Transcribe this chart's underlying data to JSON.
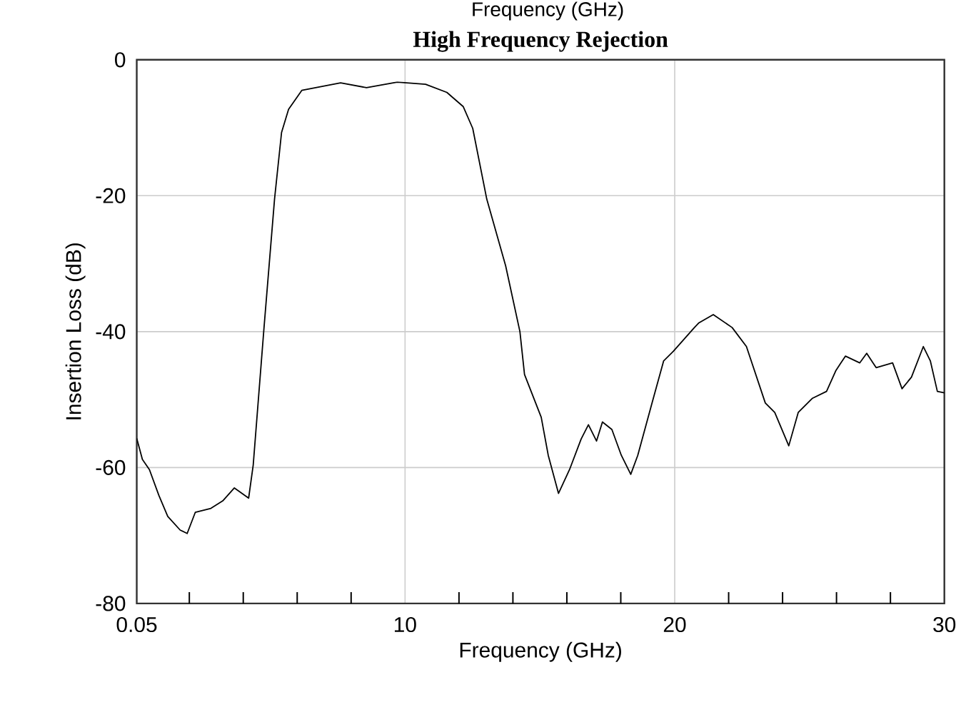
{
  "chart_data": {
    "type": "line",
    "title": "High Frequency Rejection",
    "xlabel": "Frequency (GHz)",
    "ylabel": "Insertion Loss (dB)",
    "annotations": [
      "Frequency (GHz)"
    ],
    "xlim": [
      0.05,
      30
    ],
    "xticks": [
      0.05,
      {
        "value": 2,
        "label": null
      },
      {
        "value": 4,
        "label": null
      },
      {
        "value": 6,
        "label": null
      },
      {
        "value": 8,
        "label": null
      },
      10,
      {
        "value": 12,
        "label": null
      },
      {
        "value": 14,
        "label": null
      },
      {
        "value": 16,
        "label": null
      },
      {
        "value": 18,
        "label": null
      },
      20,
      {
        "value": 22,
        "label": null
      },
      {
        "value": 24,
        "label": null
      },
      {
        "value": 26,
        "label": null
      },
      {
        "value": 28,
        "label": null
      },
      30
    ],
    "ylim": [
      -80,
      0
    ],
    "yticks": [
      -80,
      -60,
      -40,
      -20,
      0
    ],
    "grid": true,
    "marker": "none",
    "line_style": "solid",
    "x": [
      0.05,
      0.26,
      0.52,
      0.87,
      1.2,
      1.66,
      1.92,
      2.22,
      2.8,
      3.24,
      3.67,
      4.2,
      4.37,
      4.77,
      5.16,
      5.42,
      5.68,
      6.17,
      7.61,
      8.57,
      9.71,
      10.76,
      11.55,
      12.16,
      12.51,
      13.03,
      13.73,
      14.26,
      14.43,
      15.05,
      15.31,
      15.69,
      16.1,
      16.53,
      16.8,
      17.1,
      17.32,
      17.67,
      18.02,
      18.37,
      18.63,
      19.16,
      19.59,
      19.95,
      20.73,
      20.9,
      21.43,
      22.13,
      22.66,
      23.36,
      23.71,
      24.23,
      24.58,
      25.11,
      25.63,
      25.98,
      26.33,
      26.86,
      27.12,
      27.47,
      28.08,
      28.43,
      28.78,
      29.22,
      29.48,
      29.74,
      30
    ],
    "series": [
      {
        "color": "#000000",
        "values": [
          -55.7,
          -58.8,
          -60.3,
          -64.1,
          -67.2,
          -69.2,
          -69.7,
          -66.6,
          -66.0,
          -64.9,
          -63.0,
          -64.5,
          -59.6,
          -39.4,
          -20.5,
          -10.7,
          -7.3,
          -4.5,
          -3.4,
          -4.1,
          -3.3,
          -3.6,
          -4.8,
          -6.9,
          -10.1,
          -20.5,
          -30.3,
          -40.0,
          -46.3,
          -52.6,
          -58.2,
          -63.8,
          -60.3,
          -55.8,
          -53.7,
          -56.1,
          -53.3,
          -54.4,
          -58.2,
          -61.0,
          -58.2,
          -50.5,
          -44.3,
          -42.9,
          -39.4,
          -38.7,
          -37.5,
          -39.4,
          -42.2,
          -50.5,
          -51.9,
          -56.8,
          -51.9,
          -49.8,
          -48.8,
          -45.7,
          -43.6,
          -44.6,
          -43.2,
          -45.3,
          -44.6,
          -48.4,
          -46.7,
          -42.2,
          -44.3,
          -48.8,
          -49.0
        ]
      }
    ]
  }
}
